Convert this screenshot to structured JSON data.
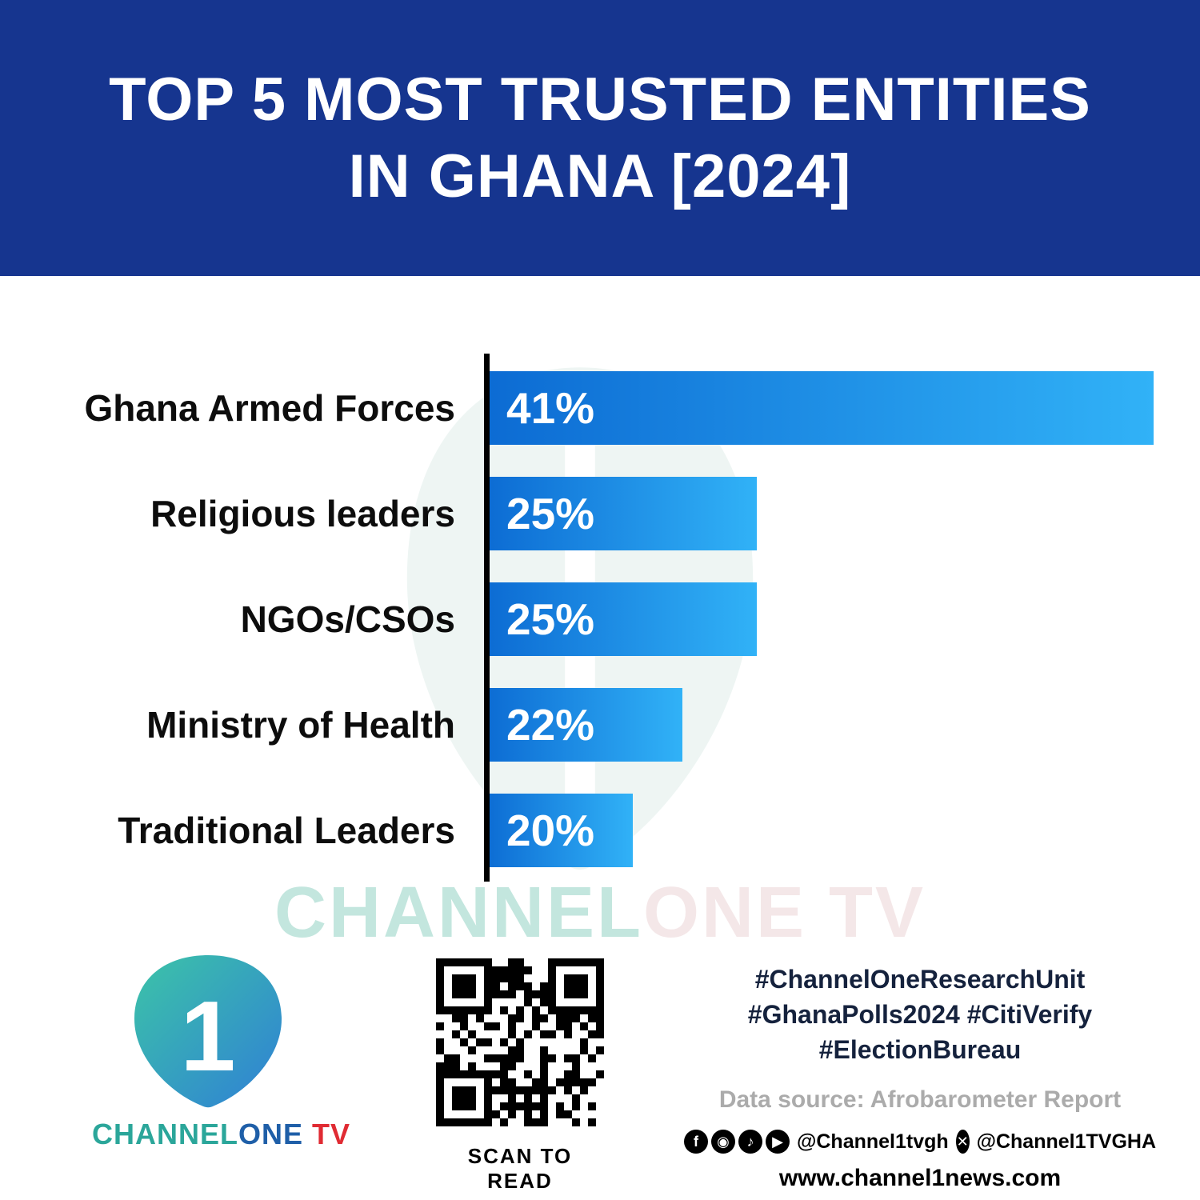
{
  "header": {
    "title_line1": "TOP 5 MOST TRUSTED ENTITIES",
    "title_line2": "IN GHANA [2024]"
  },
  "chart_data": {
    "type": "bar",
    "orientation": "horizontal",
    "title": "Top 5 Most Trusted Entities in Ghana [2024]",
    "categories": [
      "Ghana Armed Forces",
      "Religious leaders",
      "NGOs/CSOs",
      "Ministry of Health",
      "Traditional Leaders"
    ],
    "values": [
      41,
      25,
      25,
      22,
      20
    ],
    "value_labels": [
      "41%",
      "25%",
      "25%",
      "22%",
      "20%"
    ],
    "unit": "%",
    "scale": {
      "baseline": 14,
      "max": 41
    },
    "bar_gradient": [
      "#0c6bd3",
      "#31b2f7"
    ],
    "grid": false,
    "legend": false
  },
  "watermark": {
    "part1": "CHANNEL",
    "part2": "ONE TV"
  },
  "footer": {
    "logo": {
      "digit": "1",
      "brand_channel": "CHANNEL",
      "brand_one": "ONE",
      "brand_tv": " TV"
    },
    "qr_caption": "SCAN TO READ",
    "hashtags": [
      "#ChannelOneResearchUnit",
      "#GhanaPolls2024 #CitiVerify",
      "#ElectionBureau"
    ],
    "data_source": "Data source: Afrobarometer Report",
    "social": {
      "handle1": "@Channel1tvgh",
      "handle2": "@Channel1TVGHA",
      "icons": {
        "facebook": "f",
        "instagram": "◉",
        "tiktok": "♪",
        "youtube": "▶",
        "x": "✕"
      }
    },
    "website": "www.channel1news.com"
  },
  "colors": {
    "header_bg": "#16358f",
    "hashtag": "#15223d",
    "source_gray": "#ababab",
    "brand_teal": "#2ba69a",
    "brand_blue": "#1f5fa8",
    "brand_red": "#e02b33"
  }
}
